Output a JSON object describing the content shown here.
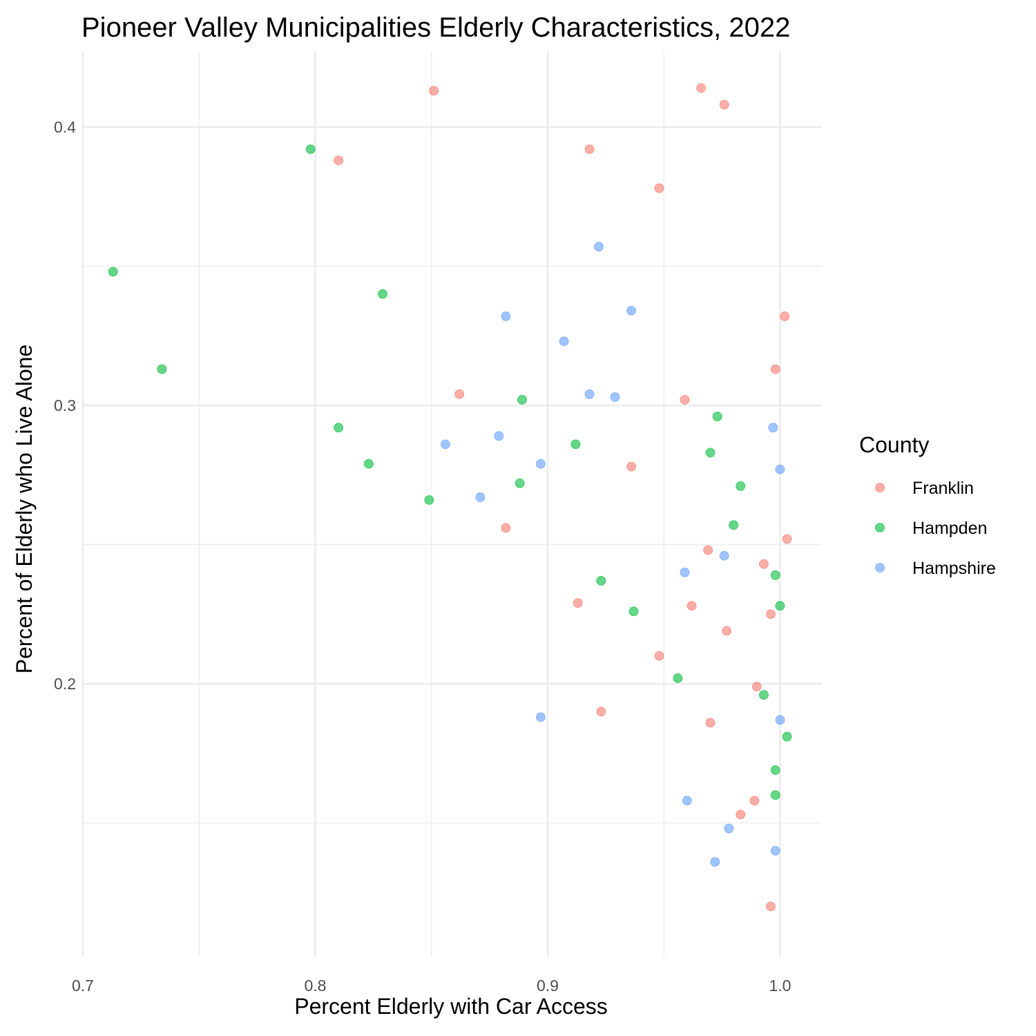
{
  "chart_data": {
    "type": "scatter",
    "title": "Pioneer Valley Municipalities Elderly Characteristics, 2022",
    "xlabel": "Percent Elderly with Car Access",
    "ylabel": "Percent of Elderly who Live Alone",
    "xlim": [
      0.7,
      1.018
    ],
    "ylim": [
      0.102,
      0.427
    ],
    "x_ticks": [
      0.7,
      0.8,
      0.9,
      1.0
    ],
    "x_tick_labels": [
      "0.7",
      "0.8",
      "0.9",
      "1.0"
    ],
    "x_minor_ticks": [
      0.75,
      0.85,
      0.95
    ],
    "y_ticks": [
      0.2,
      0.3,
      0.4
    ],
    "y_tick_labels": [
      "0.2",
      "0.3",
      "0.4"
    ],
    "y_minor_ticks": [
      0.15,
      0.25,
      0.35
    ],
    "grid": true,
    "point_alpha": 0.6,
    "legend": {
      "title": "County",
      "position": "right"
    },
    "series": [
      {
        "name": "Franklin",
        "color": "#F8766D",
        "points": [
          [
            0.851,
            0.413
          ],
          [
            0.966,
            0.414
          ],
          [
            0.976,
            0.408
          ],
          [
            0.918,
            0.392
          ],
          [
            0.81,
            0.388
          ],
          [
            0.948,
            0.378
          ],
          [
            1.002,
            0.332
          ],
          [
            0.998,
            0.313
          ],
          [
            0.862,
            0.304
          ],
          [
            0.959,
            0.302
          ],
          [
            0.936,
            0.278
          ],
          [
            0.882,
            0.256
          ],
          [
            1.003,
            0.252
          ],
          [
            0.969,
            0.248
          ],
          [
            0.993,
            0.243
          ],
          [
            0.913,
            0.229
          ],
          [
            0.962,
            0.228
          ],
          [
            0.996,
            0.225
          ],
          [
            0.977,
            0.219
          ],
          [
            0.948,
            0.21
          ],
          [
            0.99,
            0.199
          ],
          [
            0.923,
            0.19
          ],
          [
            0.97,
            0.186
          ],
          [
            0.989,
            0.158
          ],
          [
            0.983,
            0.153
          ],
          [
            0.996,
            0.12
          ]
        ]
      },
      {
        "name": "Hampden",
        "color": "#00BA38",
        "points": [
          [
            0.798,
            0.392
          ],
          [
            0.713,
            0.348
          ],
          [
            0.829,
            0.34
          ],
          [
            0.734,
            0.313
          ],
          [
            0.889,
            0.302
          ],
          [
            0.973,
            0.296
          ],
          [
            0.81,
            0.292
          ],
          [
            0.912,
            0.286
          ],
          [
            0.97,
            0.283
          ],
          [
            0.823,
            0.279
          ],
          [
            0.888,
            0.272
          ],
          [
            0.983,
            0.271
          ],
          [
            0.849,
            0.266
          ],
          [
            0.98,
            0.257
          ],
          [
            0.998,
            0.239
          ],
          [
            0.923,
            0.237
          ],
          [
            0.937,
            0.226
          ],
          [
            1.0,
            0.228
          ],
          [
            0.956,
            0.202
          ],
          [
            0.993,
            0.196
          ],
          [
            1.003,
            0.181
          ],
          [
            0.998,
            0.169
          ],
          [
            0.998,
            0.16
          ]
        ]
      },
      {
        "name": "Hampshire",
        "color": "#619CFF",
        "points": [
          [
            0.922,
            0.357
          ],
          [
            0.936,
            0.334
          ],
          [
            0.882,
            0.332
          ],
          [
            0.907,
            0.323
          ],
          [
            0.918,
            0.304
          ],
          [
            0.929,
            0.303
          ],
          [
            0.997,
            0.292
          ],
          [
            0.879,
            0.289
          ],
          [
            0.856,
            0.286
          ],
          [
            0.897,
            0.279
          ],
          [
            1.0,
            0.277
          ],
          [
            0.871,
            0.267
          ],
          [
            0.976,
            0.246
          ],
          [
            0.959,
            0.24
          ],
          [
            0.897,
            0.188
          ],
          [
            1.0,
            0.187
          ],
          [
            0.96,
            0.158
          ],
          [
            0.978,
            0.148
          ],
          [
            0.998,
            0.14
          ],
          [
            0.972,
            0.136
          ]
        ]
      }
    ]
  }
}
